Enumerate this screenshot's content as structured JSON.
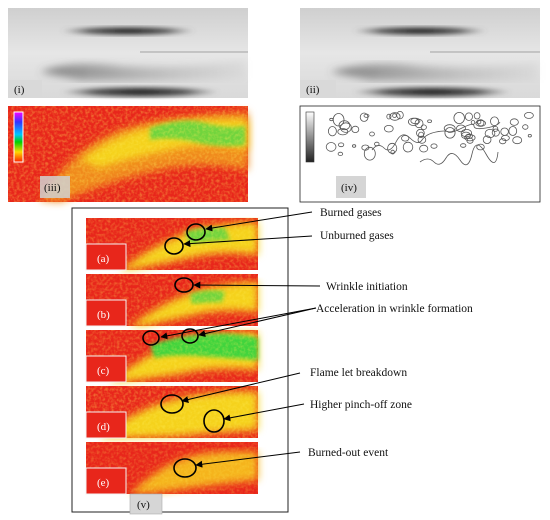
{
  "panels": {
    "i": "(i)",
    "ii": "(ii)",
    "iii": "(iii)",
    "iv": "(iv)",
    "v": "(v)"
  },
  "strips": [
    {
      "tag": "(a)"
    },
    {
      "tag": "(b)"
    },
    {
      "tag": "(c)"
    },
    {
      "tag": "(d)"
    },
    {
      "tag": "(e)"
    }
  ],
  "annotations": {
    "burned_gases": "Burned gases",
    "unburned_gases": "Unburned gases",
    "wrinkle_initiation": "Wrinkle initiation",
    "acceleration": "Acceleration in wrinkle formation",
    "flame_let_breakdown": "Flame let breakdown",
    "higher_pinch_off": "Higher pinch-off zone",
    "burned_out_event": "Burned-out event"
  },
  "colors": {
    "burned": "#e8261b",
    "unburned": "#f5d21a",
    "wrinkle": "#3fd43c",
    "marker": "#000000"
  }
}
